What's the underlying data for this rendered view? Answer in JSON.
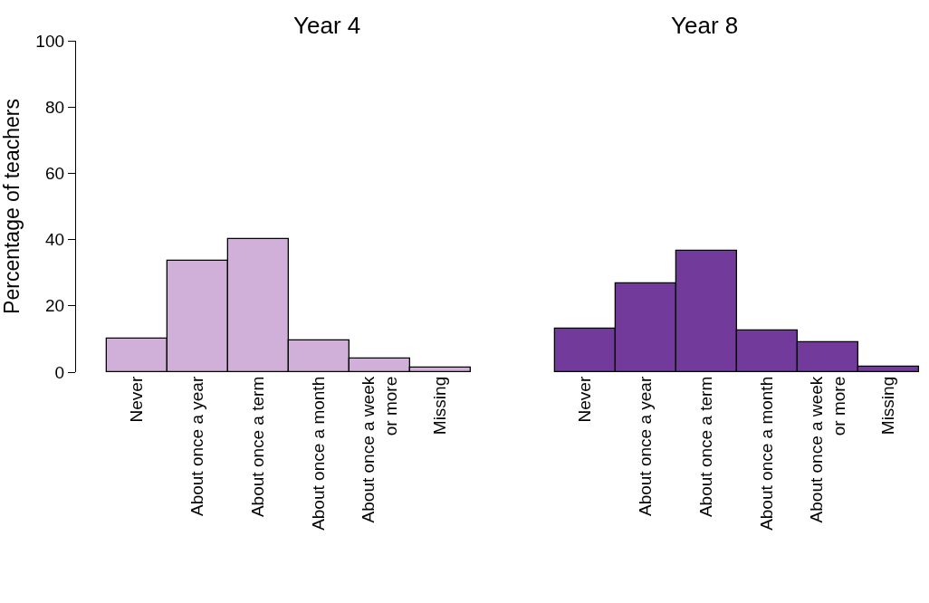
{
  "chart_data": [
    {
      "type": "bar",
      "title": "Year 4",
      "ylabel": "Percentage of teachers",
      "categories": [
        "Never",
        "About once a year",
        "About once a term",
        "About once a month",
        "About once a week or more",
        "Missing"
      ],
      "values": [
        10.2,
        33.6,
        40.3,
        9.6,
        4.1,
        1.5
      ],
      "color": "#d0b0d8",
      "ylim": [
        0,
        100
      ],
      "yticks": [
        0,
        20,
        40,
        60,
        80,
        100
      ]
    },
    {
      "type": "bar",
      "title": "Year 8",
      "categories": [
        "Never",
        "About once a year",
        "About once a term",
        "About once a month",
        "About once a week or more",
        "Missing"
      ],
      "values": [
        13.2,
        26.9,
        36.5,
        12.5,
        9.0,
        1.6
      ],
      "color": "#713a9b",
      "ylim": [
        0,
        100
      ],
      "yticks": [
        0,
        20,
        40,
        60,
        80,
        100
      ],
      "tick_labels": "x"
    }
  ]
}
